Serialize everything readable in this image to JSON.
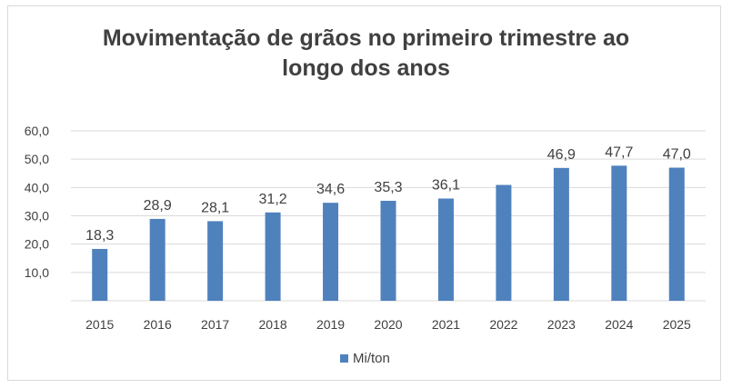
{
  "chart_data": {
    "type": "bar",
    "title_line1": "Movimentação  de grãos no primeiro trimestre ao",
    "title_line2": "longo dos anos",
    "categories": [
      "2015",
      "2016",
      "2017",
      "2018",
      "2019",
      "2020",
      "2021",
      "2022",
      "2023",
      "2024",
      "2025"
    ],
    "series": [
      {
        "name": "Mi/ton",
        "values": [
          18.3,
          28.9,
          28.1,
          31.2,
          34.6,
          35.3,
          36.1,
          40.9,
          46.9,
          47.7,
          47.0
        ],
        "labels": [
          "18,3",
          "28,9",
          "28,1",
          "31,2",
          "34,6",
          "35,3",
          "36,1",
          "",
          "46,9",
          "47,7",
          "47,0"
        ]
      }
    ],
    "yticks": [
      "10,0",
      "20,0",
      "30,0",
      "40,0",
      "50,0",
      "60,0"
    ],
    "ytick_values": [
      10,
      20,
      30,
      40,
      50,
      60
    ],
    "ylim": [
      0,
      60
    ],
    "grid": true,
    "legend_position": "bottom",
    "bar_color": "#4f81bd"
  }
}
